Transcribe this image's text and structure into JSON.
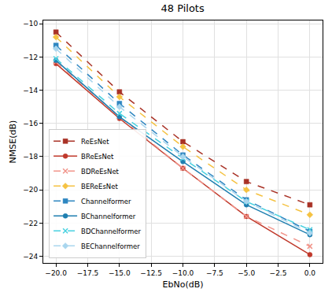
{
  "chart_data": {
    "type": "line",
    "title": "48 Pilots",
    "x_label": "EbNo(dB)",
    "y_label": "NMSE(dB)",
    "x": [
      -20,
      -15,
      -10,
      -5,
      0
    ],
    "xlim": [
      -21,
      1
    ],
    "ylim": [
      -24.4,
      -9.8
    ],
    "xticks": [
      {
        "value": -20,
        "label": "−20.0"
      },
      {
        "value": -17.5,
        "label": "−17.5"
      },
      {
        "value": -15,
        "label": "−15.0"
      },
      {
        "value": -12.5,
        "label": "−12.5"
      },
      {
        "value": -10,
        "label": "−10.0"
      },
      {
        "value": -7.5,
        "label": "−7.5"
      },
      {
        "value": -5,
        "label": "−5.0"
      },
      {
        "value": -2.5,
        "label": "−2.5"
      },
      {
        "value": 0,
        "label": "0.0"
      }
    ],
    "yticks": [
      {
        "value": -24,
        "label": "−24"
      },
      {
        "value": -22,
        "label": "−22"
      },
      {
        "value": -20,
        "label": "−20"
      },
      {
        "value": -18,
        "label": "−18"
      },
      {
        "value": -16,
        "label": "−16"
      },
      {
        "value": -14,
        "label": "−14"
      },
      {
        "value": -12,
        "label": "−12"
      },
      {
        "value": -10,
        "label": "−10"
      }
    ],
    "grid": true,
    "legend": "bottom-left",
    "series": [
      {
        "name": "ReEsNet",
        "color": "#a93226",
        "marker": "square",
        "line_style": "dashed",
        "values": [
          -10.5,
          -14.1,
          -17.1,
          -19.5,
          -20.9
        ]
      },
      {
        "name": "BReEsNet",
        "color": "#c0392b",
        "marker": "circle",
        "line_style": "solid",
        "values": [
          -12.4,
          -15.7,
          -18.7,
          -21.6,
          -23.9
        ]
      },
      {
        "name": "BDReEsNet",
        "color": "#f1948a",
        "marker": "x",
        "line_style": "dashed",
        "values": [
          -12.3,
          -15.6,
          -18.7,
          -21.6,
          -23.4
        ]
      },
      {
        "name": "BEReEsNet",
        "color": "#f5c242",
        "marker": "diamond",
        "line_style": "dashed",
        "values": [
          -10.8,
          -14.4,
          -17.4,
          -20.0,
          -21.5
        ]
      },
      {
        "name": "Channelformer",
        "color": "#2e86c1",
        "marker": "square",
        "line_style": "dashed",
        "values": [
          -11.3,
          -14.8,
          -17.9,
          -20.6,
          -22.5
        ]
      },
      {
        "name": "BChannelformer",
        "color": "#1f7fb0",
        "marker": "circle",
        "line_style": "solid",
        "values": [
          -12.2,
          -15.6,
          -18.3,
          -20.9,
          -22.7
        ]
      },
      {
        "name": "BDChannelformer",
        "color": "#48d1e0",
        "marker": "x",
        "line_style": "dashed",
        "values": [
          -12.1,
          -15.4,
          -18.1,
          -20.7,
          -22.4
        ]
      },
      {
        "name": "BEChannelformer",
        "color": "#a9d6ee",
        "marker": "diamond",
        "line_style": "dashed",
        "values": [
          -11.5,
          -15.0,
          -18.0,
          -20.7,
          -22.6
        ]
      }
    ]
  }
}
